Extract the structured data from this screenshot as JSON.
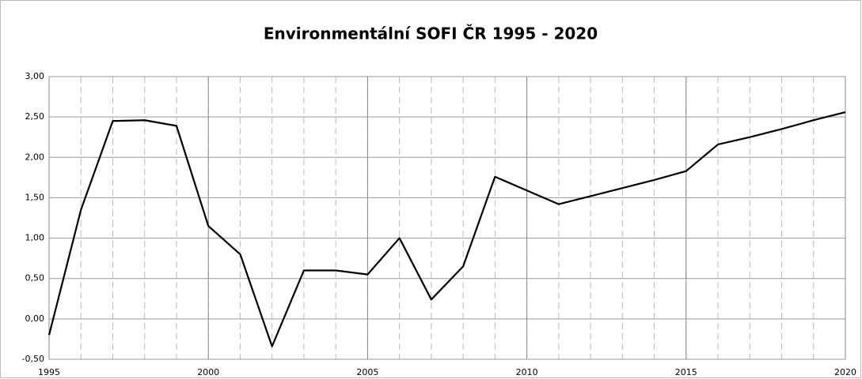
{
  "chart_data": {
    "type": "line",
    "title": "Environmentální SOFI ČR 1995 - 2020",
    "x": [
      1995,
      1996,
      1997,
      1998,
      1999,
      2000,
      2001,
      2002,
      2003,
      2004,
      2005,
      2006,
      2007,
      2008,
      2009,
      2010,
      2011,
      2012,
      2013,
      2014,
      2015,
      2016,
      2017,
      2018,
      2019,
      2020
    ],
    "series": [
      {
        "name": "Environmentální SOFI",
        "color": "#000000",
        "values": [
          -0.2,
          1.35,
          2.45,
          2.46,
          2.39,
          1.15,
          0.8,
          -0.34,
          0.6,
          0.6,
          0.55,
          1.0,
          0.24,
          0.65,
          1.76,
          1.59,
          1.42,
          1.52,
          1.62,
          1.72,
          1.83,
          2.16,
          2.25,
          2.35,
          2.46,
          2.56
        ]
      }
    ],
    "xlim": [
      1995,
      2020
    ],
    "xticks": [
      1995,
      2000,
      2005,
      2010,
      2015,
      2020
    ],
    "ylim": [
      -0.5,
      3.0
    ],
    "yticks": [
      {
        "value": -0.5,
        "label": "-0,50"
      },
      {
        "value": 0,
        "label": "0,00"
      },
      {
        "value": 0.5,
        "label": "0,50"
      },
      {
        "value": 1.0,
        "label": "1,00"
      },
      {
        "value": 1.5,
        "label": "1,50"
      },
      {
        "value": 2.0,
        "label": "2,00"
      },
      {
        "value": 2.5,
        "label": "2,50"
      },
      {
        "value": 3.0,
        "label": "3,00"
      }
    ],
    "grid": true
  }
}
